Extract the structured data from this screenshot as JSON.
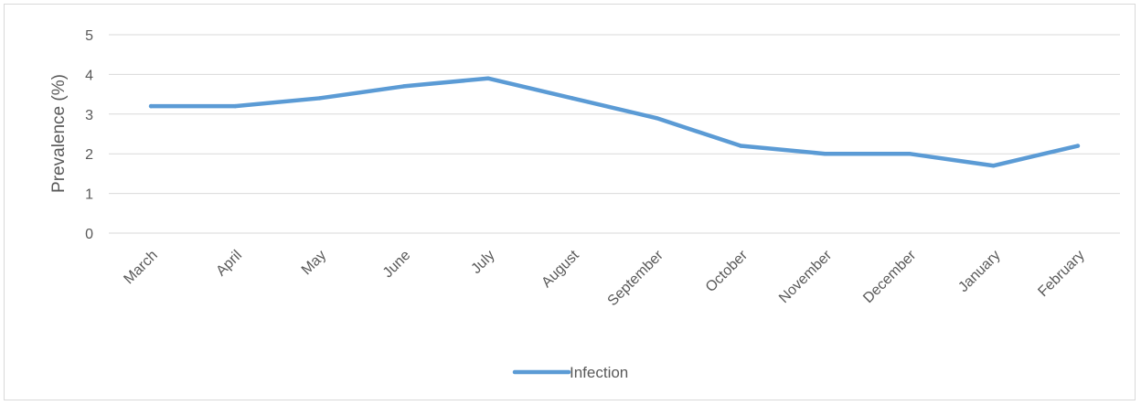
{
  "chart_data": {
    "type": "line",
    "title": "",
    "xlabel": "",
    "ylabel": "Prevalence (%)",
    "categories": [
      "March",
      "April",
      "May",
      "June",
      "July",
      "August",
      "September",
      "October",
      "November",
      "December",
      "January",
      "February"
    ],
    "series": [
      {
        "name": "Infection",
        "color": "#5b9bd5",
        "values": [
          3.2,
          3.2,
          3.4,
          3.7,
          3.9,
          3.4,
          2.9,
          2.2,
          2.0,
          2.0,
          1.7,
          2.2
        ]
      }
    ],
    "ylim": [
      0,
      5
    ],
    "yticks": [
      "0",
      "1",
      "2",
      "3",
      "4",
      "5"
    ],
    "grid": true,
    "legend_position": "bottom"
  }
}
